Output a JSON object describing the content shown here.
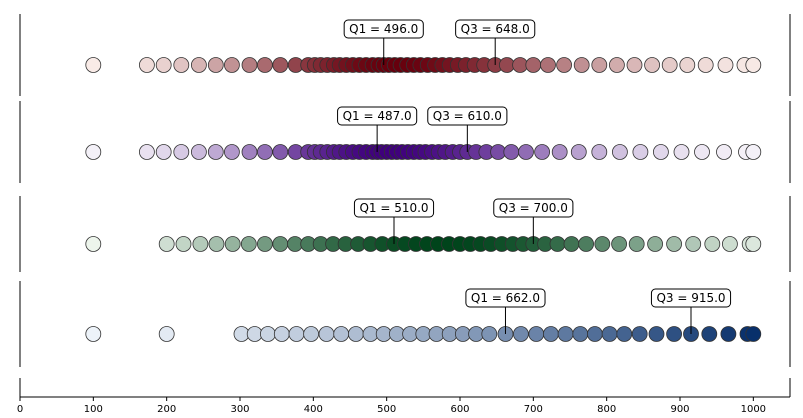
{
  "chart_data": {
    "type": "scatter",
    "xlim": [
      0,
      1050
    ],
    "x_ticks": [
      0,
      100,
      200,
      300,
      400,
      500,
      600,
      700,
      800,
      900,
      1000
    ],
    "grid": false,
    "panels": [
      {
        "colormap": "Reds",
        "color_range": [
          "#fff5f0",
          "#67000d"
        ],
        "q1_label": "Q1 = 496.0",
        "q3_label": "Q3 = 648.0",
        "q1": 496.0,
        "q3": 648.0,
        "points": [
          100,
          173,
          196,
          220,
          244,
          267,
          289,
          313,
          334,
          355,
          376,
          393,
          402,
          410,
          419,
          428,
          436,
          445,
          454,
          463,
          472,
          481,
          489,
          496,
          503,
          511,
          519,
          528,
          537,
          546,
          556,
          566,
          576,
          586,
          597,
          608,
          620,
          633,
          648,
          664,
          682,
          700,
          720,
          742,
          766,
          790,
          814,
          838,
          862,
          886,
          910,
          935,
          962,
          988,
          1000
        ]
      },
      {
        "colormap": "Purples",
        "color_range": [
          "#fcfbfd",
          "#3f007d"
        ],
        "q1_label": "Q1 = 487.0",
        "q3_label": "Q3 = 610.0",
        "q1": 487.0,
        "q3": 610.0,
        "points": [
          100,
          173,
          196,
          220,
          244,
          267,
          289,
          313,
          334,
          355,
          376,
          393,
          402,
          410,
          419,
          428,
          436,
          445,
          454,
          463,
          472,
          481,
          487,
          493,
          500,
          507,
          514,
          521,
          529,
          537,
          545,
          553,
          562,
          571,
          580,
          590,
          600,
          610,
          622,
          636,
          652,
          670,
          690,
          712,
          736,
          762,
          790,
          818,
          846,
          874,
          902,
          930,
          960,
          990,
          1000
        ]
      },
      {
        "colormap": "Greens",
        "color_range": [
          "#f7fcf5",
          "#00441b"
        ],
        "q1_label": "Q1 = 510.0",
        "q3_label": "Q3 = 700.0",
        "q1": 510.0,
        "q3": 700.0,
        "points": [
          100,
          200,
          223,
          246,
          268,
          290,
          312,
          334,
          355,
          375,
          393,
          410,
          427,
          444,
          461,
          478,
          494,
          510,
          525,
          540,
          555,
          570,
          585,
          600,
          614,
          628,
          642,
          657,
          672,
          686,
          700,
          716,
          733,
          752,
          772,
          794,
          817,
          841,
          866,
          892,
          918,
          944,
          968,
          995,
          1000
        ]
      },
      {
        "colormap": "Blues",
        "color_range": [
          "#f7fbff",
          "#08306b"
        ],
        "q1_label": "Q1 = 662.0",
        "q3_label": "Q3 = 915.0",
        "q1": 662.0,
        "q3": 915.0,
        "points": [
          100,
          200,
          302,
          320,
          338,
          357,
          377,
          397,
          418,
          438,
          458,
          478,
          496,
          514,
          532,
          550,
          568,
          586,
          604,
          622,
          640,
          662,
          683,
          704,
          724,
          744,
          764,
          784,
          804,
          824,
          845,
          868,
          892,
          915,
          940,
          966,
          992,
          1000
        ]
      }
    ]
  }
}
